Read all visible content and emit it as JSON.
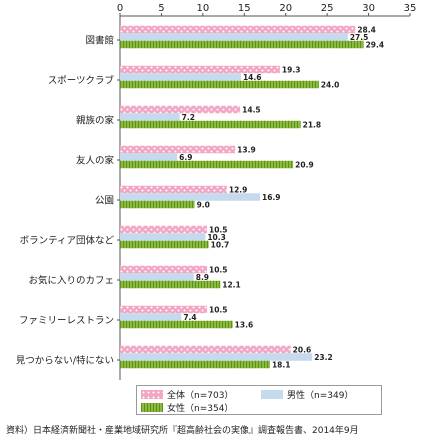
{
  "chart_data": {
    "type": "bar",
    "orientation": "horizontal",
    "categories": [
      "図書館",
      "スポーツクラブ",
      "親族の家",
      "友人の家",
      "公園",
      "ボランティア団体など",
      "お気に入りのカフェ",
      "ファミリーレストラン",
      "見つからない/特にない"
    ],
    "series": [
      {
        "name": "全体（n=703）",
        "values": [
          28.4,
          19.3,
          14.5,
          13.9,
          12.9,
          10.5,
          10.5,
          10.5,
          20.6
        ]
      },
      {
        "name": "男性（n=349）",
        "values": [
          27.5,
          14.6,
          7.2,
          6.9,
          16.9,
          10.3,
          8.9,
          7.4,
          23.2
        ]
      },
      {
        "name": "女性（n=354）",
        "values": [
          29.4,
          24.0,
          21.8,
          20.9,
          9.0,
          10.7,
          12.1,
          13.6,
          18.1
        ]
      }
    ],
    "series_colors": [
      "#f2a6c4",
      "#c5d9ef",
      "#86b535"
    ],
    "xlim": [
      0,
      35
    ],
    "xticks": [
      0,
      5,
      10,
      15,
      20,
      25,
      30,
      35
    ],
    "grid": false,
    "legend_position": "bottom"
  },
  "legend": {
    "all": "全体（n=703）",
    "male": "男性（n=349）",
    "female": "女性（n=354）"
  },
  "source": "資料）日本経済新聞社・産業地域研究所『超高齢社会の実像』調査報告書、2014年9月"
}
